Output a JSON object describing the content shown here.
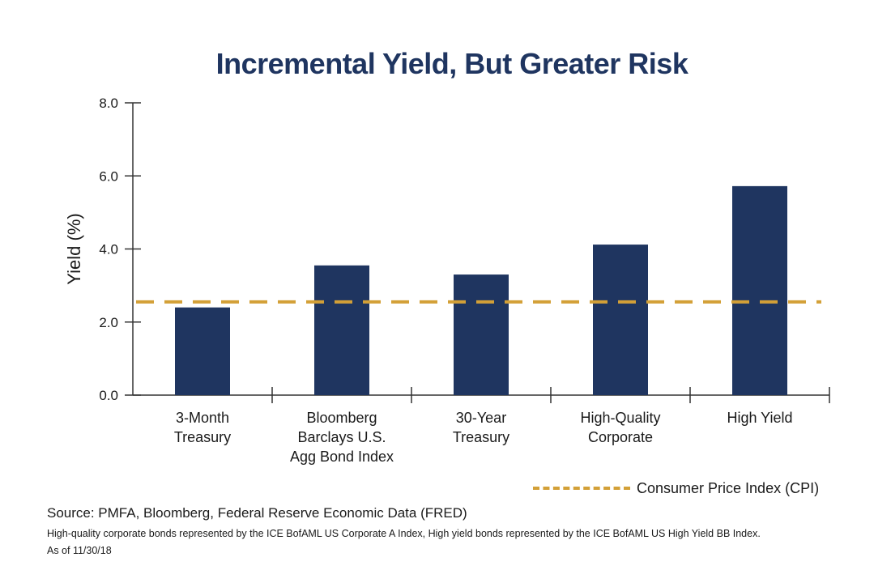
{
  "colors": {
    "bar": "#1f3560",
    "cpi": "#d3a037",
    "axis": "#333333"
  },
  "chart_data": {
    "type": "bar",
    "title": "Incremental Yield, But Greater Risk",
    "ylabel": "Yield (%)",
    "xlabel": "",
    "ylim": [
      0,
      8
    ],
    "yticks": [
      "0.0",
      "2.0",
      "4.0",
      "6.0",
      "8.0"
    ],
    "ytick_values": [
      0,
      2,
      4,
      6,
      8
    ],
    "categories": [
      [
        "3-Month",
        "Treasury"
      ],
      [
        "Bloomberg",
        "Barclays U.S.",
        "Agg Bond Index"
      ],
      [
        "30-Year",
        "Treasury"
      ],
      [
        "High-Quality",
        "Corporate"
      ],
      [
        "High Yield"
      ]
    ],
    "values": [
      2.4,
      3.55,
      3.3,
      4.12,
      5.72
    ],
    "reference_line": {
      "name": "Consumer Price Index (CPI)",
      "value": 2.55,
      "style": "dashed"
    },
    "grid": false,
    "legend_position": "bottom-right"
  },
  "legend": {
    "label": "Consumer Price Index (CPI)"
  },
  "footer": {
    "source": "Source: PMFA, Bloomberg, Federal Reserve Economic Data (FRED)",
    "note": "High-quality corporate bonds represented by the ICE BofAML US Corporate A Index, High yield bonds represented by the ICE BofAML US High Yield BB Index.",
    "as_of": "As of 11/30/18"
  }
}
